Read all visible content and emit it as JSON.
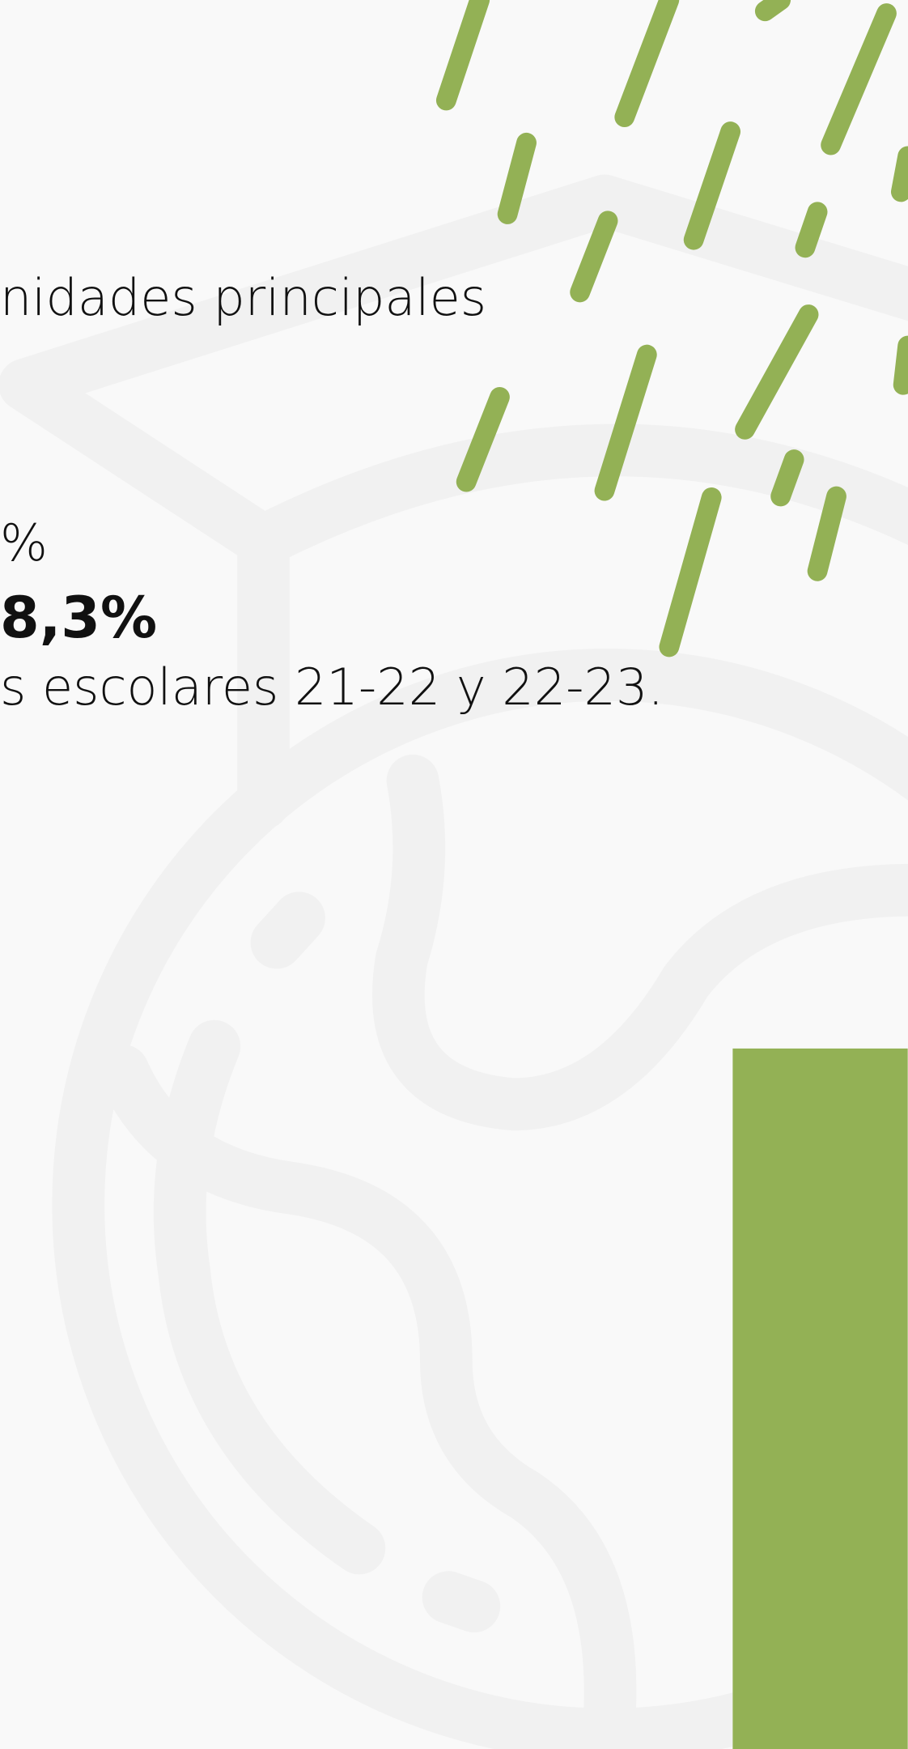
{
  "texts": {
    "line1": "nidades principales",
    "line2": "%",
    "line3": "8,3%",
    "line4": "s escolares 21-22 y 22-23."
  }
}
